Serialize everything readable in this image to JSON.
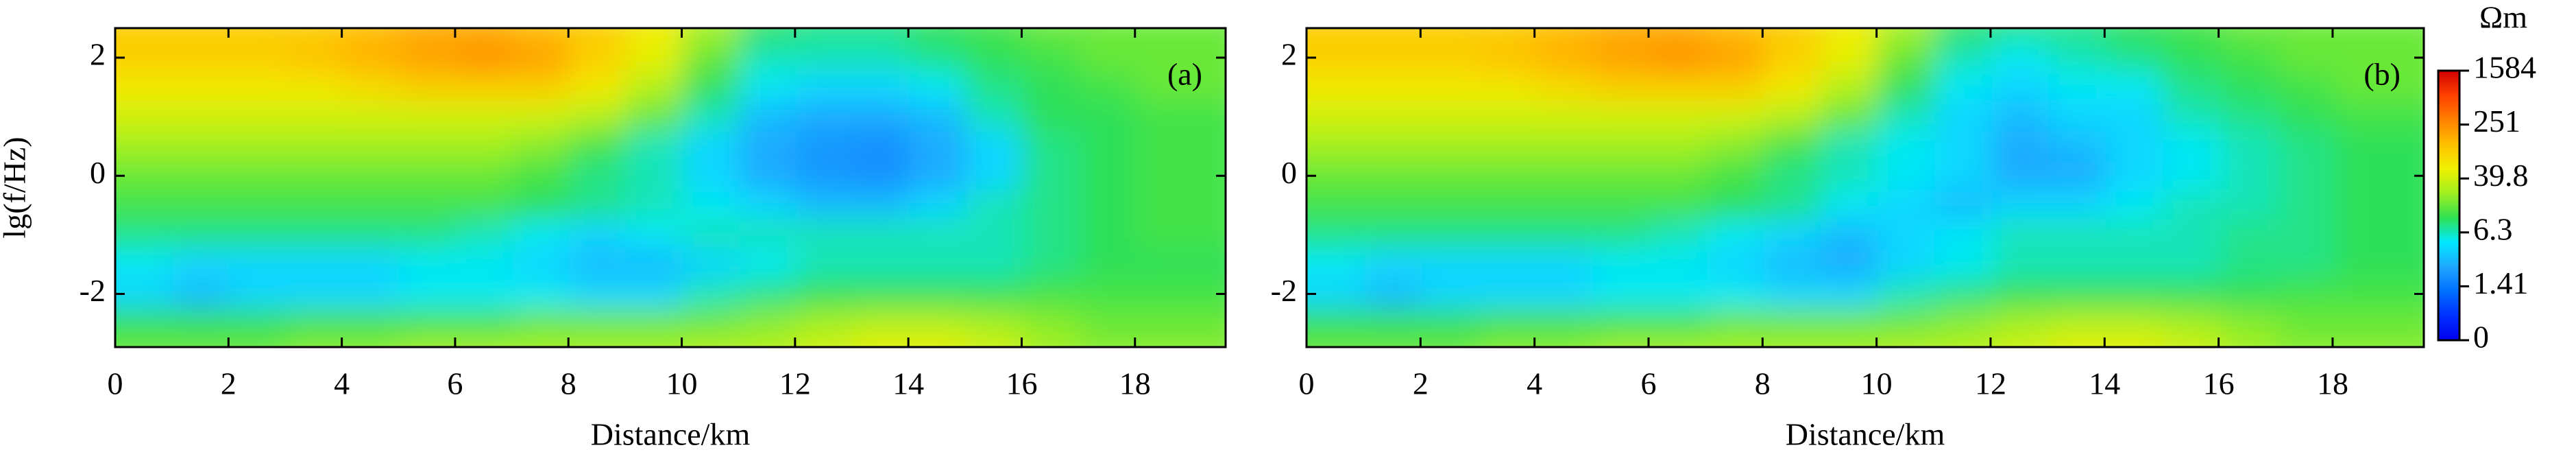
{
  "chart_data": [
    {
      "type": "heatmap",
      "label": "(a)",
      "xlabel": "Distance/km",
      "ylabel": "lg(f/Hz)",
      "xlim": [
        0,
        19.6
      ],
      "ylim": [
        -2.9,
        2.5
      ],
      "xticks": [
        0,
        2,
        4,
        6,
        8,
        10,
        12,
        14,
        16,
        18
      ],
      "yticks": [
        -2,
        0,
        2
      ],
      "x": [
        0,
        1,
        2,
        3,
        4,
        5,
        6,
        7,
        8,
        9,
        10,
        11,
        12,
        13,
        14,
        15,
        16,
        17,
        18,
        19
      ],
      "y": [
        2.5,
        2,
        1.5,
        1,
        0.5,
        0,
        -0.5,
        -1,
        -1.5,
        -2,
        -2.5,
        -3
      ],
      "z": [
        [
          100,
          100,
          100,
          100,
          100,
          130,
          160,
          160,
          130,
          100,
          60,
          25,
          10,
          8,
          8,
          10,
          12,
          16,
          16,
          16
        ],
        [
          100,
          100,
          100,
          100,
          130,
          160,
          200,
          250,
          200,
          100,
          50,
          16,
          6.3,
          6.3,
          6.3,
          8,
          10,
          12,
          16,
          16
        ],
        [
          63,
          63,
          63,
          63,
          63,
          80,
          100,
          100,
          100,
          63,
          30,
          10,
          5,
          4,
          4,
          5,
          8,
          10,
          12,
          16
        ],
        [
          40,
          40,
          40,
          40,
          40,
          40,
          40,
          40,
          40,
          30,
          16,
          6.3,
          3,
          2.5,
          2.5,
          3,
          6.3,
          10,
          10,
          12
        ],
        [
          25,
          25,
          25,
          25,
          25,
          25,
          25,
          25,
          20,
          12,
          6.3,
          4,
          2.5,
          2,
          1.8,
          2.5,
          4,
          8,
          10,
          12
        ],
        [
          16,
          16,
          16,
          16,
          16,
          16,
          16,
          16,
          12,
          8,
          6.3,
          4,
          2.5,
          2,
          1.8,
          2.5,
          4,
          8,
          10,
          12
        ],
        [
          12,
          12,
          12,
          12,
          12,
          12,
          12,
          12,
          10,
          8,
          6.3,
          5,
          4,
          3,
          3,
          4,
          6.3,
          8,
          10,
          12
        ],
        [
          8,
          8,
          8,
          8,
          8,
          8,
          8,
          6.3,
          5,
          4,
          5,
          6.3,
          6.3,
          6.3,
          6.3,
          6.3,
          6.3,
          8,
          10,
          12
        ],
        [
          5,
          5,
          4,
          4,
          4,
          4,
          5,
          5,
          4,
          3,
          3,
          4,
          5,
          6.3,
          6.3,
          6.3,
          6.3,
          8,
          10,
          10
        ],
        [
          4,
          4,
          3,
          4,
          4,
          4,
          5,
          5,
          5,
          4,
          4,
          6.3,
          8,
          10,
          10,
          10,
          10,
          12,
          12,
          12
        ],
        [
          10,
          10,
          10,
          10,
          12,
          12,
          12,
          12,
          16,
          16,
          16,
          16,
          20,
          25,
          30,
          30,
          25,
          20,
          16,
          16
        ],
        [
          16,
          16,
          16,
          16,
          20,
          20,
          25,
          25,
          25,
          25,
          25,
          30,
          30,
          40,
          50,
          50,
          40,
          25,
          20,
          20
        ]
      ]
    },
    {
      "type": "heatmap",
      "label": "(b)",
      "xlabel": "Distance/km",
      "xlim": [
        0,
        19.6
      ],
      "ylim": [
        -2.9,
        2.5
      ],
      "xticks": [
        0,
        2,
        4,
        6,
        8,
        10,
        12,
        14,
        16,
        18
      ],
      "yticks": [
        -2,
        0,
        2
      ],
      "x": [
        0,
        1,
        2,
        3,
        4,
        5,
        6,
        7,
        8,
        9,
        10,
        11,
        12,
        13,
        14,
        15,
        16,
        17,
        18,
        19
      ],
      "y": [
        2.5,
        2,
        1.5,
        1,
        0.5,
        0,
        -0.5,
        -1,
        -1.5,
        -2,
        -2.5,
        -3
      ],
      "z": [
        [
          100,
          100,
          100,
          100,
          100,
          130,
          160,
          160,
          130,
          100,
          60,
          25,
          10,
          8,
          8,
          10,
          12,
          16,
          16,
          16
        ],
        [
          100,
          100,
          100,
          100,
          130,
          160,
          200,
          250,
          200,
          100,
          50,
          16,
          6.3,
          5,
          6.3,
          8,
          10,
          12,
          16,
          16
        ],
        [
          63,
          63,
          63,
          63,
          63,
          80,
          100,
          100,
          100,
          63,
          30,
          10,
          5,
          4,
          5,
          5,
          8,
          10,
          12,
          16
        ],
        [
          40,
          40,
          40,
          40,
          40,
          40,
          40,
          40,
          40,
          30,
          16,
          6.3,
          4,
          3,
          4,
          4,
          6.3,
          8,
          10,
          12
        ],
        [
          25,
          25,
          25,
          25,
          25,
          25,
          25,
          25,
          20,
          12,
          6.3,
          5,
          4,
          2.5,
          3,
          4,
          5,
          6.3,
          8,
          10
        ],
        [
          16,
          16,
          16,
          16,
          16,
          16,
          16,
          16,
          12,
          8,
          6.3,
          5,
          4,
          2.5,
          2.5,
          4,
          5,
          6.3,
          8,
          10
        ],
        [
          12,
          12,
          12,
          12,
          12,
          12,
          12,
          12,
          10,
          8,
          5,
          4,
          3,
          4,
          4,
          5,
          6.3,
          6.3,
          8,
          10
        ],
        [
          8,
          8,
          8,
          8,
          8,
          8,
          8,
          6.3,
          5,
          4,
          3,
          4,
          5,
          6.3,
          6.3,
          6.3,
          6.3,
          8,
          8,
          10
        ],
        [
          5,
          5,
          4,
          4,
          4,
          4,
          5,
          5,
          4,
          3,
          2.5,
          4,
          5,
          6.3,
          6.3,
          6.3,
          6.3,
          8,
          8,
          10
        ],
        [
          4,
          4,
          3,
          4,
          4,
          4,
          5,
          5,
          5,
          4,
          4,
          6.3,
          8,
          10,
          10,
          10,
          10,
          10,
          12,
          12
        ],
        [
          10,
          10,
          10,
          10,
          12,
          12,
          12,
          12,
          16,
          16,
          16,
          16,
          20,
          25,
          30,
          30,
          25,
          20,
          16,
          16
        ],
        [
          16,
          16,
          16,
          16,
          20,
          20,
          25,
          25,
          25,
          25,
          25,
          30,
          30,
          40,
          50,
          50,
          40,
          25,
          20,
          20
        ]
      ],
      "colorbar": {
        "title": "Ωm",
        "ticks": [
          0,
          1.41,
          6.3,
          39.8,
          251,
          1584
        ],
        "colors": [
          "#0000f0",
          "#0030ff",
          "#0070ff",
          "#20a8ff",
          "#00e8ff",
          "#30e050",
          "#a0f020",
          "#f0f000",
          "#ffc000",
          "#ff8000",
          "#ff4000",
          "#d00000"
        ]
      }
    }
  ]
}
